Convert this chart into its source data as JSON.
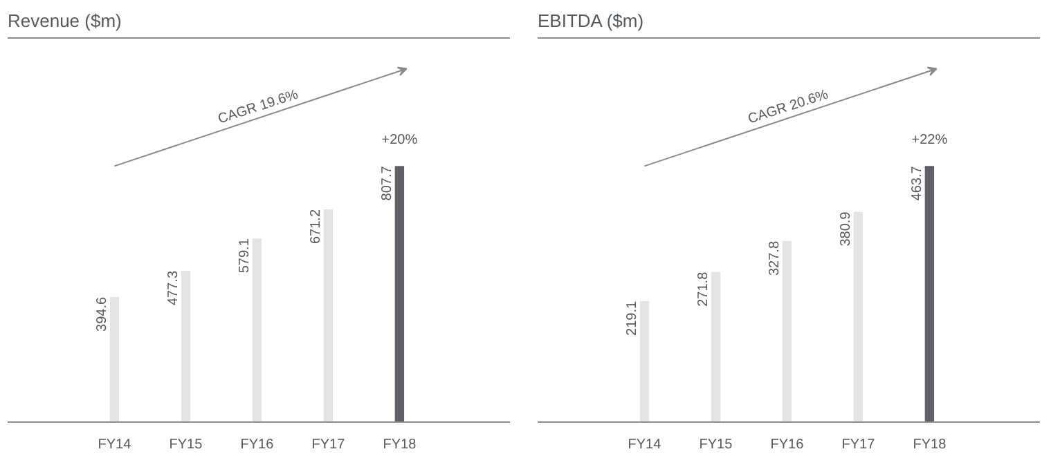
{
  "chart_data": [
    {
      "type": "bar",
      "title": "Revenue ($m)",
      "categories": [
        "FY14",
        "FY15",
        "FY16",
        "FY17",
        "FY18"
      ],
      "values": [
        394.6,
        477.3,
        579.1,
        671.2,
        807.7
      ],
      "colors": [
        "#e3e4e6",
        "#e3e4e6",
        "#e3e4e6",
        "#e3e4e6",
        "#5f6166"
      ],
      "data_labels": true,
      "annotations": [
        "CAGR 19.6%",
        {
          "text": "+20%",
          "x": "FY18",
          "y": 807.7
        }
      ]
    },
    {
      "type": "bar",
      "title": "EBITDA ($m)",
      "categories": [
        "FY14",
        "FY15",
        "FY16",
        "FY17",
        "FY18"
      ],
      "values": [
        219.1,
        271.8,
        327.8,
        380.9,
        463.7
      ],
      "colors": [
        "#e3e4e6",
        "#e3e4e6",
        "#e3e4e6",
        "#e3e4e6",
        "#5f6166"
      ],
      "data_labels": true,
      "annotations": [
        "CAGR 20.6%",
        {
          "text": "+22%",
          "x": "FY18",
          "y": 463.7
        }
      ]
    }
  ]
}
